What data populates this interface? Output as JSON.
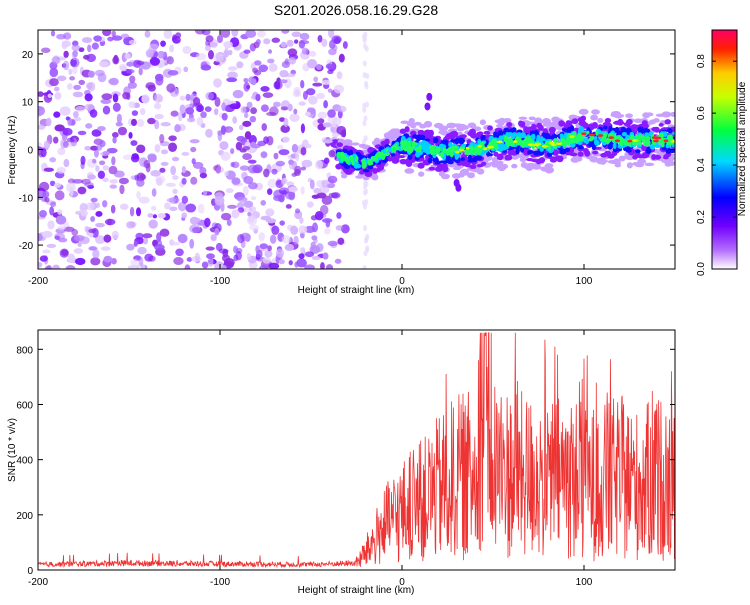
{
  "title": "S201.2026.058.16.29.G28",
  "chart_data": [
    {
      "type": "heatmap",
      "xlabel": "Height of straight line (km)",
      "ylabel": "Frequency (Hz)",
      "xlim": [
        -200,
        150
      ],
      "ylim": [
        -25,
        25
      ],
      "x_ticks": [
        -200,
        -100,
        0,
        100
      ],
      "x_tick_labels": [
        "-200",
        "-100",
        "0",
        "100"
      ],
      "y_ticks": [
        -20,
        -10,
        0,
        10,
        20
      ],
      "y_tick_labels": [
        "-20",
        "-10",
        "0",
        "10",
        "20"
      ],
      "colorbar": {
        "label": "Normalized spectral amplitude",
        "range": [
          0,
          0.92
        ],
        "ticks": [
          0.0,
          0.2,
          0.4,
          0.6,
          0.8
        ],
        "tick_labels": [
          "0.0",
          "0.2",
          "0.4",
          "0.6",
          "0.8"
        ],
        "colormap": [
          "#ffffff",
          "#9a00ff",
          "#0000ff",
          "#00ffff",
          "#00ff00",
          "#ffff00",
          "#ff0000",
          "#ff0080"
        ]
      },
      "ridge": {
        "description_points_x": [
          -35,
          -20,
          0,
          20,
          40,
          60,
          80,
          100,
          120,
          150
        ],
        "frequency_y": [
          -1.5,
          -3,
          1,
          -0.5,
          0,
          2,
          1,
          3,
          2,
          2
        ]
      },
      "noise_region_x": [
        -200,
        -35
      ]
    },
    {
      "type": "line",
      "xlabel": "Height of straight line (km)",
      "ylabel": "SNR (10 * v/v)",
      "xlim": [
        -200,
        150
      ],
      "ylim": [
        0,
        870
      ],
      "x_ticks": [
        -200,
        -100,
        0,
        100
      ],
      "x_tick_labels": [
        "-200",
        "-100",
        "0",
        "100"
      ],
      "y_ticks": [
        0,
        200,
        400,
        600,
        800
      ],
      "y_tick_labels": [
        "0",
        "200",
        "400",
        "600",
        "800"
      ],
      "series": [
        {
          "color": "#ee3333",
          "x": [
            -200,
            -150,
            -100,
            -50,
            -25,
            -20,
            -10,
            0,
            10,
            20,
            30,
            40,
            45,
            50,
            60,
            70,
            80,
            90,
            100,
            110,
            120,
            130,
            140,
            150
          ],
          "y": [
            20,
            25,
            22,
            20,
            25,
            60,
            150,
            200,
            230,
            280,
            320,
            330,
            860,
            360,
            330,
            320,
            310,
            330,
            300,
            300,
            320,
            290,
            320,
            300
          ]
        }
      ]
    }
  ]
}
